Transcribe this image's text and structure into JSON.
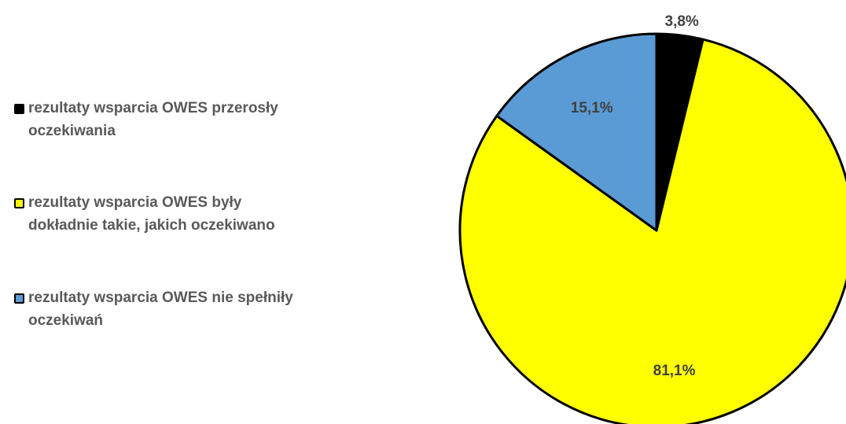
{
  "chart_data": {
    "type": "pie",
    "start_angle_deg": 0,
    "direction": "clockwise",
    "legend_position": "left",
    "slices": [
      {
        "label": "rezultaty wsparcia OWES przerosły oczekiwania",
        "value": 3.8,
        "display": "3,8%",
        "color": "#000000"
      },
      {
        "label": "rezultaty wsparcia OWES były dokładnie takie, jakich oczekiwano",
        "value": 81.1,
        "display": "81,1%",
        "color": "#FFFF00"
      },
      {
        "label": "rezultaty wsparcia OWES nie spełniły oczekiwań",
        "value": 15.1,
        "display": "15,1%",
        "color": "#5B9BD5"
      }
    ]
  }
}
